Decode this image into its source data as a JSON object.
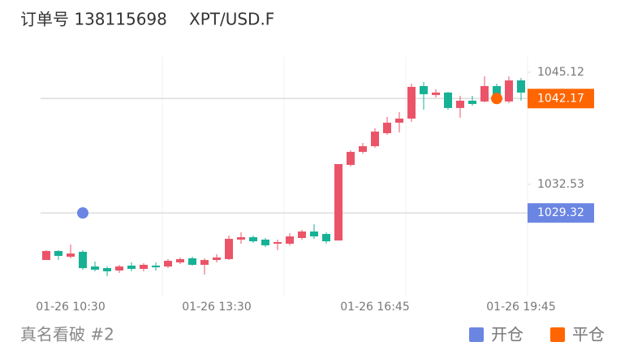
{
  "chart_data": {
    "type": "candlestick",
    "title": "订单号 138115698",
    "symbol": "XPT/USD.F",
    "categories": [
      null,
      null,
      "01-26 10:30",
      null,
      null,
      null,
      null,
      null,
      null,
      null,
      null,
      null,
      null,
      null,
      "01-26 13:30",
      null,
      null,
      null,
      null,
      null,
      null,
      null,
      null,
      null,
      null,
      null,
      null,
      "01-26 16:45",
      null,
      null,
      null,
      null,
      null,
      null,
      null,
      null,
      null,
      null,
      null,
      "01-26 19:45"
    ],
    "open": [
      1024.04,
      1025.05,
      1024.41,
      1024.96,
      1023.31,
      1023.13,
      1022.86,
      1023.41,
      1023.04,
      1023.41,
      1023.31,
      1023.77,
      1024.23,
      1023.5,
      1024.04,
      1024.14,
      1026.33,
      1026.6,
      1026.33,
      1025.87,
      1025.87,
      1026.51,
      1027.24,
      1026.96,
      1026.23,
      1034.72,
      1036.18,
      1036.82,
      1038.28,
      1039.46,
      1039.92,
      1043.57,
      1042.57,
      1042.84,
      1041.11,
      1041.93,
      1041.84,
      1043.57,
      1041.84,
      1044.21
    ],
    "high": [
      1025.14,
      1025.14,
      1025.78,
      1025.14,
      1023.86,
      1023.31,
      1023.5,
      1023.77,
      1023.68,
      1023.77,
      1024.14,
      1024.32,
      1024.41,
      1024.23,
      1024.68,
      1026.78,
      1027.15,
      1026.78,
      1026.51,
      1026.33,
      1027.05,
      1027.42,
      1028.06,
      1027.15,
      1034.81,
      1036.36,
      1037.18,
      1038.82,
      1040.1,
      1040.65,
      1043.84,
      1044.03,
      1043.2,
      1042.93,
      1042.47,
      1042.47,
      1044.66,
      1043.84,
      1044.66,
      1044.48
    ],
    "low": [
      1024.04,
      1024.04,
      1024.23,
      1022.95,
      1022.77,
      1022.22,
      1022.58,
      1022.77,
      1022.77,
      1022.86,
      1023.13,
      1023.59,
      1023.41,
      1022.4,
      1023.77,
      1024.04,
      1025.87,
      1025.96,
      1025.5,
      1025.14,
      1025.69,
      1026.33,
      1026.42,
      1025.87,
      1026.23,
      1034.54,
      1036.0,
      1036.64,
      1038.1,
      1038.37,
      1039.55,
      1040.92,
      1042.29,
      1040.92,
      1040.01,
      1041.38,
      1041.74,
      1041.74,
      1041.65,
      1041.93
    ],
    "close": [
      1025.05,
      1024.5,
      1024.77,
      1023.13,
      1022.95,
      1022.77,
      1023.31,
      1023.04,
      1023.5,
      1023.22,
      1023.95,
      1024.14,
      1023.5,
      1024.04,
      1024.32,
      1026.42,
      1026.6,
      1026.14,
      1025.69,
      1026.05,
      1026.69,
      1027.24,
      1026.69,
      1026.14,
      1034.81,
      1036.18,
      1036.82,
      1038.46,
      1039.46,
      1039.92,
      1043.48,
      1042.66,
      1042.84,
      1041.11,
      1041.93,
      1041.56,
      1043.57,
      1042.47,
      1044.21,
      1042.84
    ],
    "up_color": "#eb5468",
    "down_color": "#17b195",
    "ylim": [
      1019.94,
      1046.85
    ],
    "yticks": [
      1032.53,
      1045.12
    ],
    "markers": [
      {
        "name": "开仓",
        "color": "#6b86e2",
        "candle": 3,
        "value": 1029.32
      },
      {
        "name": "平仓",
        "color": "#ff6500",
        "candle": 37,
        "value": 1042.17
      }
    ],
    "footer": "真名看破 #2"
  }
}
